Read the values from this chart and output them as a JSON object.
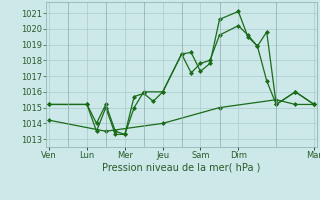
{
  "bg_color": "#cce8e8",
  "grid_color": "#aacccc",
  "line_color": "#1a6b1a",
  "marker": "D",
  "markersize": 2.0,
  "linewidth": 0.9,
  "xlabel": "Pression niveau de la mer( hPa )",
  "xlabel_fontsize": 7,
  "ytick_fontsize": 6,
  "xtick_fontsize": 6,
  "ylim": [
    1012.5,
    1021.7
  ],
  "yticks": [
    1013,
    1014,
    1015,
    1016,
    1017,
    1018,
    1019,
    1020,
    1021
  ],
  "xlim": [
    -0.1,
    10.1
  ],
  "day_ticks": [
    0,
    1.43,
    2.86,
    4.29,
    5.71,
    7.14,
    10.0
  ],
  "day_labels": [
    "Ven",
    "Lun",
    "Mer",
    "Jeu",
    "Sam",
    "Dim",
    "Mar"
  ],
  "vlines": [
    0.71,
    2.14,
    3.57,
    5.0,
    6.43,
    8.57
  ],
  "lines": [
    {
      "x": [
        0.0,
        1.43,
        1.79,
        2.14,
        2.5,
        2.86,
        3.21,
        3.57,
        4.29,
        5.0,
        5.36,
        5.71,
        6.07,
        6.43,
        7.14,
        7.5,
        7.86,
        8.21,
        8.57,
        9.29,
        10.0
      ],
      "y": [
        1015.2,
        1015.2,
        1014.0,
        1015.2,
        1013.5,
        1013.3,
        1015.0,
        1016.0,
        1016.0,
        1018.4,
        1018.5,
        1017.3,
        1017.8,
        1020.6,
        1021.1,
        1019.5,
        1018.9,
        1016.7,
        1015.2,
        1016.0,
        1015.2
      ]
    },
    {
      "x": [
        0.0,
        1.43,
        1.79,
        2.14,
        2.5,
        2.86,
        3.21,
        3.57,
        3.93,
        4.29,
        5.0,
        5.36,
        5.71,
        6.07,
        6.43,
        7.14,
        7.5,
        7.86,
        8.21,
        8.57,
        9.29,
        10.0
      ],
      "y": [
        1015.2,
        1015.2,
        1013.5,
        1015.0,
        1013.3,
        1013.3,
        1015.7,
        1015.9,
        1015.4,
        1016.0,
        1018.4,
        1017.2,
        1017.8,
        1018.0,
        1019.6,
        1020.2,
        1019.6,
        1018.9,
        1019.8,
        1015.2,
        1016.0,
        1015.2
      ]
    },
    {
      "x": [
        0.0,
        2.14,
        4.29,
        6.43,
        8.57,
        9.29,
        10.0
      ],
      "y": [
        1014.2,
        1013.5,
        1014.0,
        1015.0,
        1015.5,
        1015.2,
        1015.2
      ]
    }
  ]
}
